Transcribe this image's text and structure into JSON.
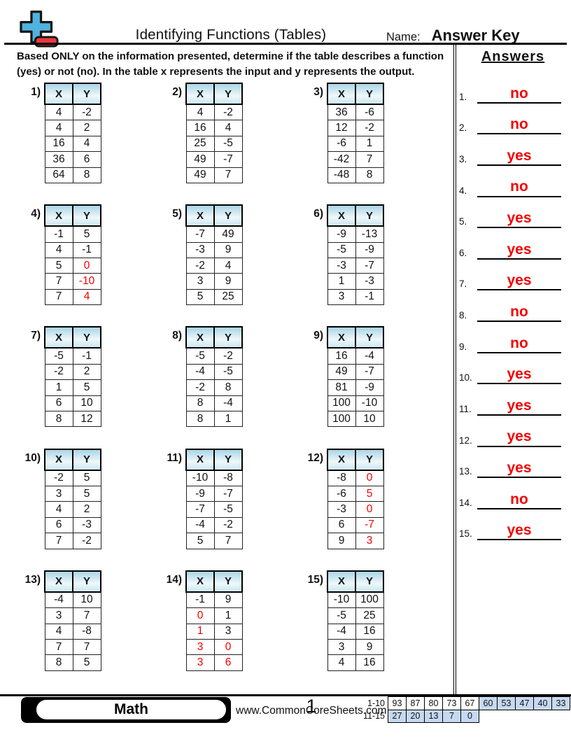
{
  "colors": {
    "accent_red": "#f40000",
    "score_shaded": "#c6d9f2"
  },
  "header": {
    "title": "Identifying Functions (Tables)",
    "name_label": "Name:",
    "name_value": "Answer Key"
  },
  "instructions": "Based ONLY on the information presented, determine if the table describes a function (yes) or not (no). In the table x represents the input and y represents the output.",
  "table_headers": [
    "X",
    "Y"
  ],
  "problems": [
    {
      "label": "1)",
      "rows": [
        {
          "x": "4",
          "y": "-2"
        },
        {
          "x": "4",
          "y": "2"
        },
        {
          "x": "16",
          "y": "4"
        },
        {
          "x": "36",
          "y": "6"
        },
        {
          "x": "64",
          "y": "8"
        }
      ]
    },
    {
      "label": "2)",
      "rows": [
        {
          "x": "4",
          "y": "-2"
        },
        {
          "x": "16",
          "y": "4"
        },
        {
          "x": "25",
          "y": "-5"
        },
        {
          "x": "49",
          "y": "-7"
        },
        {
          "x": "49",
          "y": "7"
        }
      ]
    },
    {
      "label": "3)",
      "rows": [
        {
          "x": "36",
          "y": "-6"
        },
        {
          "x": "12",
          "y": "-2"
        },
        {
          "x": "-6",
          "y": "1"
        },
        {
          "x": "-42",
          "y": "7"
        },
        {
          "x": "-48",
          "y": "8"
        }
      ]
    },
    {
      "label": "4)",
      "rows": [
        {
          "x": "-1",
          "y": "5"
        },
        {
          "x": "4",
          "y": "-1"
        },
        {
          "x": "5",
          "y": "0",
          "ry": true
        },
        {
          "x": "7",
          "y": "-10",
          "ry": true
        },
        {
          "x": "7",
          "y": "4",
          "ry": true
        }
      ]
    },
    {
      "label": "5)",
      "rows": [
        {
          "x": "-7",
          "y": "49"
        },
        {
          "x": "-3",
          "y": "9"
        },
        {
          "x": "-2",
          "y": "4"
        },
        {
          "x": "3",
          "y": "9"
        },
        {
          "x": "5",
          "y": "25"
        }
      ]
    },
    {
      "label": "6)",
      "rows": [
        {
          "x": "-9",
          "y": "-13"
        },
        {
          "x": "-5",
          "y": "-9"
        },
        {
          "x": "-3",
          "y": "-7"
        },
        {
          "x": "1",
          "y": "-3"
        },
        {
          "x": "3",
          "y": "-1"
        }
      ]
    },
    {
      "label": "7)",
      "rows": [
        {
          "x": "-5",
          "y": "-1"
        },
        {
          "x": "-2",
          "y": "2"
        },
        {
          "x": "1",
          "y": "5"
        },
        {
          "x": "6",
          "y": "10"
        },
        {
          "x": "8",
          "y": "12"
        }
      ]
    },
    {
      "label": "8)",
      "rows": [
        {
          "x": "-5",
          "y": "-2"
        },
        {
          "x": "-4",
          "y": "-5"
        },
        {
          "x": "-2",
          "y": "8"
        },
        {
          "x": "8",
          "y": "-4"
        },
        {
          "x": "8",
          "y": "1"
        }
      ]
    },
    {
      "label": "9)",
      "rows": [
        {
          "x": "16",
          "y": "-4"
        },
        {
          "x": "49",
          "y": "-7"
        },
        {
          "x": "81",
          "y": "-9"
        },
        {
          "x": "100",
          "y": "-10"
        },
        {
          "x": "100",
          "y": "10"
        }
      ]
    },
    {
      "label": "10)",
      "rows": [
        {
          "x": "-2",
          "y": "5"
        },
        {
          "x": "3",
          "y": "5"
        },
        {
          "x": "4",
          "y": "2"
        },
        {
          "x": "6",
          "y": "-3"
        },
        {
          "x": "7",
          "y": "-2"
        }
      ]
    },
    {
      "label": "11)",
      "rows": [
        {
          "x": "-10",
          "y": "-8"
        },
        {
          "x": "-9",
          "y": "-7"
        },
        {
          "x": "-7",
          "y": "-5"
        },
        {
          "x": "-4",
          "y": "-2"
        },
        {
          "x": "5",
          "y": "7"
        }
      ]
    },
    {
      "label": "12)",
      "rows": [
        {
          "x": "-8",
          "y": "0",
          "ry": true
        },
        {
          "x": "-6",
          "y": "5",
          "ry": true
        },
        {
          "x": "-3",
          "y": "0",
          "ry": true
        },
        {
          "x": "6",
          "y": "-7",
          "ry": true
        },
        {
          "x": "9",
          "y": "3",
          "ry": true
        }
      ]
    },
    {
      "label": "13)",
      "rows": [
        {
          "x": "-4",
          "y": "10"
        },
        {
          "x": "3",
          "y": "7"
        },
        {
          "x": "4",
          "y": "-8"
        },
        {
          "x": "7",
          "y": "7"
        },
        {
          "x": "8",
          "y": "5"
        }
      ]
    },
    {
      "label": "14)",
      "rows": [
        {
          "x": "-1",
          "y": "9"
        },
        {
          "x": "0",
          "y": "1",
          "rx": true
        },
        {
          "x": "1",
          "y": "3",
          "rx": true
        },
        {
          "x": "3",
          "y": "0",
          "rx": true,
          "ry": true
        },
        {
          "x": "3",
          "y": "6",
          "rx": true,
          "ry": true
        }
      ]
    },
    {
      "label": "15)",
      "rows": [
        {
          "x": "-10",
          "y": "100"
        },
        {
          "x": "-5",
          "y": "25"
        },
        {
          "x": "-4",
          "y": "16"
        },
        {
          "x": "3",
          "y": "9"
        },
        {
          "x": "4",
          "y": "16"
        }
      ]
    }
  ],
  "answers_panel": {
    "title": "Answers",
    "items": [
      {
        "num": "1.",
        "value": "no"
      },
      {
        "num": "2.",
        "value": "no"
      },
      {
        "num": "3.",
        "value": "yes"
      },
      {
        "num": "4.",
        "value": "no"
      },
      {
        "num": "5.",
        "value": "yes"
      },
      {
        "num": "6.",
        "value": "yes"
      },
      {
        "num": "7.",
        "value": "yes"
      },
      {
        "num": "8.",
        "value": "no"
      },
      {
        "num": "9.",
        "value": "no"
      },
      {
        "num": "10.",
        "value": "yes"
      },
      {
        "num": "11.",
        "value": "yes"
      },
      {
        "num": "12.",
        "value": "yes"
      },
      {
        "num": "13.",
        "value": "yes"
      },
      {
        "num": "14.",
        "value": "no"
      },
      {
        "num": "15.",
        "value": "yes"
      }
    ]
  },
  "footer": {
    "brand": "Math",
    "website": "www.CommonCoreSheets.com",
    "page": "1",
    "score_rows": [
      {
        "label": "1-10",
        "cells": [
          {
            "v": "93"
          },
          {
            "v": "87"
          },
          {
            "v": "80"
          },
          {
            "v": "73"
          },
          {
            "v": "67"
          },
          {
            "v": "60",
            "shaded": true
          },
          {
            "v": "53",
            "shaded": true
          },
          {
            "v": "47",
            "shaded": true
          },
          {
            "v": "40",
            "shaded": true
          },
          {
            "v": "33",
            "shaded": true
          }
        ]
      },
      {
        "label": "11-15",
        "cells": [
          {
            "v": "27",
            "shaded": true
          },
          {
            "v": "20",
            "shaded": true
          },
          {
            "v": "13",
            "shaded": true
          },
          {
            "v": "7",
            "shaded": true
          },
          {
            "v": "0",
            "shaded": true
          }
        ]
      }
    ]
  }
}
